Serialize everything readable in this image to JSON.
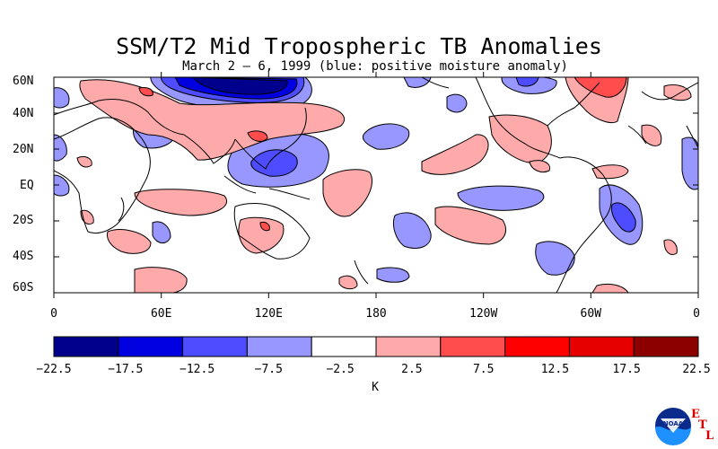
{
  "title": "SSM/T2 Mid Tropospheric TB Anomalies",
  "subtitle": "March 2 – 6, 1999 (blue: positive moisture anomaly)",
  "lat_labels": [
    "60N",
    "40N",
    "20N",
    "EQ",
    "20S",
    "40S",
    "60S"
  ],
  "lon_labels": [
    "0",
    "60E",
    "120E",
    "180",
    "120W",
    "60W",
    "0"
  ],
  "colorbar": {
    "colors": [
      "#00008c",
      "#0000e0",
      "#4d4dff",
      "#9797ff",
      "#ffffff",
      "#ffaaaa",
      "#ff4d4d",
      "#ff0000",
      "#e60000",
      "#8c0000"
    ],
    "labels": [
      "−22.5",
      "−17.5",
      "−12.5",
      "−7.5",
      "−2.5",
      "2.5",
      "7.5",
      "12.5",
      "17.5",
      "22.5"
    ],
    "unit": "K"
  },
  "logo": {
    "agency": "NOAA",
    "lab_letters": [
      "E",
      "T",
      "L"
    ]
  }
}
